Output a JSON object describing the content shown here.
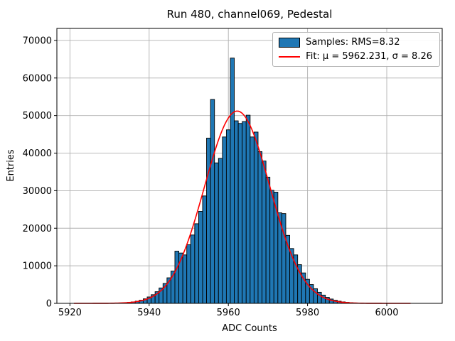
{
  "figure": {
    "background": "#ffffff",
    "grid_color": "#b0b0b0",
    "frame_color": "#000000"
  },
  "chart_data": {
    "type": "bar",
    "subtype": "histogram-with-gaussian-fit",
    "title": "Run 480, channel069, Pedestal",
    "xlabel": "ADC Counts",
    "ylabel": "Entries",
    "xlim": [
      5916.7,
      6014.0
    ],
    "ylim": [
      0,
      73200
    ],
    "x_ticks": [
      5920,
      5940,
      5960,
      5980,
      6000
    ],
    "y_ticks": [
      0,
      10000,
      20000,
      30000,
      40000,
      50000,
      60000,
      70000
    ],
    "grid": true,
    "bar_color": "#1f77b4",
    "bar_edge_color": "#000000",
    "bin_start": 5930,
    "bin_width": 1,
    "counts": [
      30,
      45,
      70,
      110,
      170,
      260,
      390,
      580,
      840,
      1200,
      1700,
      2300,
      3100,
      4100,
      5300,
      6800,
      8600,
      13900,
      13400,
      12900,
      15600,
      18200,
      21200,
      24500,
      28600,
      44000,
      54300,
      37400,
      38600,
      44300,
      46200,
      65300,
      48600,
      47900,
      48400,
      50100,
      44300,
      45600,
      40400,
      37900,
      33600,
      30100,
      29600,
      24100,
      23900,
      18100,
      14600,
      12900,
      10300,
      8100,
      6400,
      5000,
      3900,
      2950,
      2200,
      1600,
      1150,
      820,
      570,
      390,
      260,
      170,
      110,
      70,
      45,
      28
    ],
    "rms": 8.32,
    "fit": {
      "mu": 5962.231,
      "sigma": 8.26,
      "amplitude": 51200,
      "color": "#ff0000",
      "x_range": [
        5921,
        6006
      ]
    },
    "legend": [
      {
        "label": "Samples: RMS=8.32",
        "swatch": "patch",
        "color": "#1f77b4"
      },
      {
        "label": "Fit: μ = 5962.231, σ = 8.26",
        "swatch": "line",
        "color": "#ff0000"
      }
    ],
    "legend_position": "upper right"
  }
}
